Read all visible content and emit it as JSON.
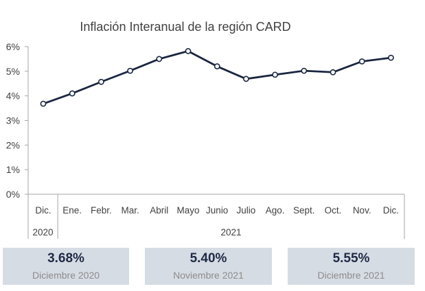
{
  "chart_data": {
    "type": "line",
    "title": "Inflación Interanual de la región CARD",
    "categories": [
      "Dic.",
      "Ene.",
      "Febr.",
      "Mar.",
      "Abril",
      "Mayo",
      "Junio",
      "Julio",
      "Ago.",
      "Sept.",
      "Oct.",
      "Nov.",
      "Dic."
    ],
    "groups": [
      {
        "label": "2020",
        "span": 1
      },
      {
        "label": "2021",
        "span": 12
      }
    ],
    "series": [
      {
        "values": [
          3.68,
          4.1,
          4.57,
          5.02,
          5.5,
          5.82,
          5.2,
          4.69,
          4.86,
          5.02,
          4.96,
          5.4,
          5.55
        ],
        "color": "#1a2640"
      }
    ],
    "yticks": [
      "0%",
      "1%",
      "2%",
      "3%",
      "4%",
      "5%",
      "6%"
    ],
    "ylim": [
      0,
      6
    ],
    "grid": false,
    "legend": "none"
  },
  "cards": [
    {
      "value": "3.68%",
      "label": "Diciembre 2020"
    },
    {
      "value": "5.40%",
      "label": "Noviembre 2021"
    },
    {
      "value": "5.55%",
      "label": "Diciembre 2021"
    }
  ]
}
